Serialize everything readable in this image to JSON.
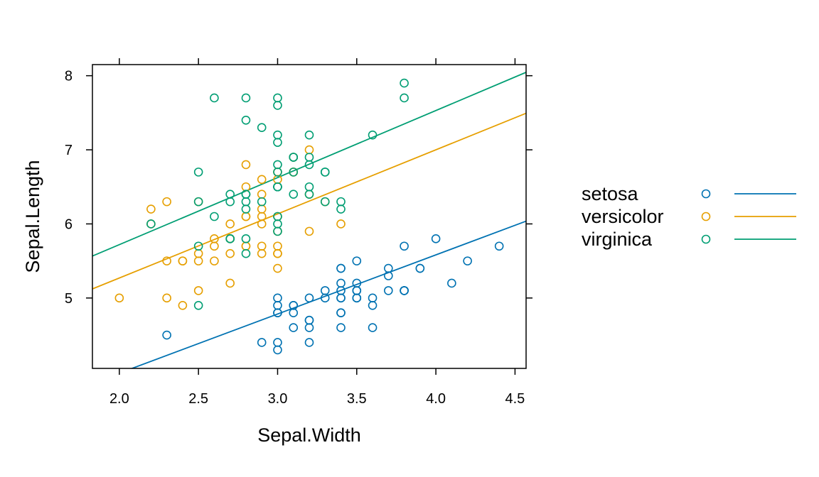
{
  "chart_data": {
    "type": "scatter",
    "xlabel": "Sepal.Width",
    "ylabel": "Sepal.Length",
    "xlim": [
      1.83,
      4.57
    ],
    "ylim": [
      4.05,
      8.15
    ],
    "x_ticks": [
      2.0,
      2.5,
      3.0,
      3.5,
      4.0,
      4.5
    ],
    "x_tick_labels": [
      "2.0",
      "2.5",
      "3.0",
      "3.5",
      "4.0",
      "4.5"
    ],
    "y_ticks": [
      5,
      6,
      7,
      8
    ],
    "y_tick_labels": [
      "5",
      "6",
      "7",
      "8"
    ],
    "grid": false,
    "legend_position": "right",
    "series": [
      {
        "name": "setosa",
        "color": "#0072B2",
        "fit": {
          "slope": 0.798,
          "intercept": 2.39
        },
        "points": [
          [
            3.5,
            5.1
          ],
          [
            3.0,
            4.9
          ],
          [
            3.2,
            4.7
          ],
          [
            3.1,
            4.6
          ],
          [
            3.6,
            5.0
          ],
          [
            3.9,
            5.4
          ],
          [
            3.4,
            4.6
          ],
          [
            3.4,
            5.0
          ],
          [
            2.9,
            4.4
          ],
          [
            3.1,
            4.9
          ],
          [
            3.7,
            5.4
          ],
          [
            3.4,
            4.8
          ],
          [
            3.0,
            4.8
          ],
          [
            3.0,
            4.3
          ],
          [
            4.0,
            5.8
          ],
          [
            4.4,
            5.7
          ],
          [
            3.9,
            5.4
          ],
          [
            3.5,
            5.1
          ],
          [
            3.8,
            5.7
          ],
          [
            3.8,
            5.1
          ],
          [
            3.4,
            5.4
          ],
          [
            3.7,
            5.1
          ],
          [
            3.6,
            4.6
          ],
          [
            3.3,
            5.1
          ],
          [
            3.4,
            4.8
          ],
          [
            3.0,
            5.0
          ],
          [
            3.4,
            5.0
          ],
          [
            3.5,
            5.2
          ],
          [
            3.4,
            5.2
          ],
          [
            3.2,
            4.7
          ],
          [
            3.1,
            4.8
          ],
          [
            3.4,
            5.4
          ],
          [
            4.1,
            5.2
          ],
          [
            4.2,
            5.5
          ],
          [
            3.1,
            4.9
          ],
          [
            3.2,
            5.0
          ],
          [
            3.5,
            5.5
          ],
          [
            3.6,
            4.9
          ],
          [
            3.0,
            4.4
          ],
          [
            3.4,
            5.1
          ],
          [
            3.5,
            5.0
          ],
          [
            2.3,
            4.5
          ],
          [
            3.2,
            4.4
          ],
          [
            3.5,
            5.0
          ],
          [
            3.8,
            5.1
          ],
          [
            3.0,
            4.8
          ],
          [
            3.8,
            5.1
          ],
          [
            3.2,
            4.6
          ],
          [
            3.7,
            5.3
          ],
          [
            3.3,
            5.0
          ]
        ]
      },
      {
        "name": "versicolor",
        "color": "#E69F00",
        "fit": {
          "slope": 0.865,
          "intercept": 3.54
        },
        "points": [
          [
            3.2,
            7.0
          ],
          [
            3.2,
            6.4
          ],
          [
            3.1,
            6.9
          ],
          [
            2.3,
            5.5
          ],
          [
            2.8,
            6.5
          ],
          [
            2.8,
            5.7
          ],
          [
            3.3,
            6.3
          ],
          [
            2.4,
            4.9
          ],
          [
            2.9,
            6.6
          ],
          [
            2.7,
            5.2
          ],
          [
            2.0,
            5.0
          ],
          [
            3.0,
            5.9
          ],
          [
            2.2,
            6.0
          ],
          [
            2.9,
            6.1
          ],
          [
            2.9,
            5.6
          ],
          [
            3.1,
            6.7
          ],
          [
            3.0,
            5.6
          ],
          [
            2.7,
            5.8
          ],
          [
            2.2,
            6.2
          ],
          [
            2.5,
            5.6
          ],
          [
            3.2,
            5.9
          ],
          [
            2.8,
            6.1
          ],
          [
            2.5,
            6.3
          ],
          [
            2.8,
            6.1
          ],
          [
            2.9,
            6.4
          ],
          [
            3.0,
            6.6
          ],
          [
            2.8,
            6.8
          ],
          [
            3.0,
            6.7
          ],
          [
            2.9,
            6.0
          ],
          [
            2.6,
            5.7
          ],
          [
            2.4,
            5.5
          ],
          [
            2.4,
            5.5
          ],
          [
            2.7,
            5.8
          ],
          [
            2.7,
            6.0
          ],
          [
            3.0,
            5.4
          ],
          [
            3.4,
            6.0
          ],
          [
            3.1,
            6.7
          ],
          [
            2.3,
            6.3
          ],
          [
            3.0,
            5.6
          ],
          [
            2.5,
            5.5
          ],
          [
            2.6,
            5.5
          ],
          [
            3.0,
            6.1
          ],
          [
            2.6,
            5.8
          ],
          [
            2.3,
            5.0
          ],
          [
            2.7,
            5.6
          ],
          [
            3.0,
            5.7
          ],
          [
            2.9,
            5.7
          ],
          [
            2.9,
            6.2
          ],
          [
            2.5,
            5.1
          ],
          [
            2.8,
            5.7
          ]
        ]
      },
      {
        "name": "virginica",
        "color": "#009E73",
        "fit": {
          "slope": 0.905,
          "intercept": 3.91
        },
        "points": [
          [
            3.3,
            6.3
          ],
          [
            2.7,
            5.8
          ],
          [
            3.0,
            7.1
          ],
          [
            2.9,
            6.3
          ],
          [
            3.0,
            6.5
          ],
          [
            3.0,
            7.6
          ],
          [
            2.5,
            4.9
          ],
          [
            2.9,
            7.3
          ],
          [
            2.5,
            6.7
          ],
          [
            3.6,
            7.2
          ],
          [
            3.2,
            6.5
          ],
          [
            2.7,
            6.4
          ],
          [
            3.0,
            6.8
          ],
          [
            2.5,
            5.7
          ],
          [
            2.8,
            5.8
          ],
          [
            3.2,
            6.4
          ],
          [
            3.0,
            6.5
          ],
          [
            3.8,
            7.7
          ],
          [
            2.6,
            7.7
          ],
          [
            2.2,
            6.0
          ],
          [
            3.2,
            6.9
          ],
          [
            2.8,
            5.6
          ],
          [
            2.8,
            7.7
          ],
          [
            2.7,
            6.3
          ],
          [
            3.3,
            6.7
          ],
          [
            3.2,
            7.2
          ],
          [
            2.8,
            6.2
          ],
          [
            3.0,
            6.1
          ],
          [
            2.8,
            6.4
          ],
          [
            3.0,
            7.2
          ],
          [
            2.8,
            7.4
          ],
          [
            3.8,
            7.9
          ],
          [
            2.8,
            6.4
          ],
          [
            2.8,
            6.3
          ],
          [
            2.6,
            6.1
          ],
          [
            3.0,
            7.7
          ],
          [
            3.4,
            6.3
          ],
          [
            3.1,
            6.4
          ],
          [
            3.0,
            6.0
          ],
          [
            3.1,
            6.9
          ],
          [
            3.1,
            6.7
          ],
          [
            3.1,
            6.9
          ],
          [
            2.7,
            5.8
          ],
          [
            3.2,
            6.8
          ],
          [
            3.3,
            6.7
          ],
          [
            3.0,
            6.7
          ],
          [
            2.5,
            6.3
          ],
          [
            3.0,
            6.5
          ],
          [
            3.4,
            6.2
          ],
          [
            3.0,
            5.9
          ]
        ]
      }
    ]
  }
}
